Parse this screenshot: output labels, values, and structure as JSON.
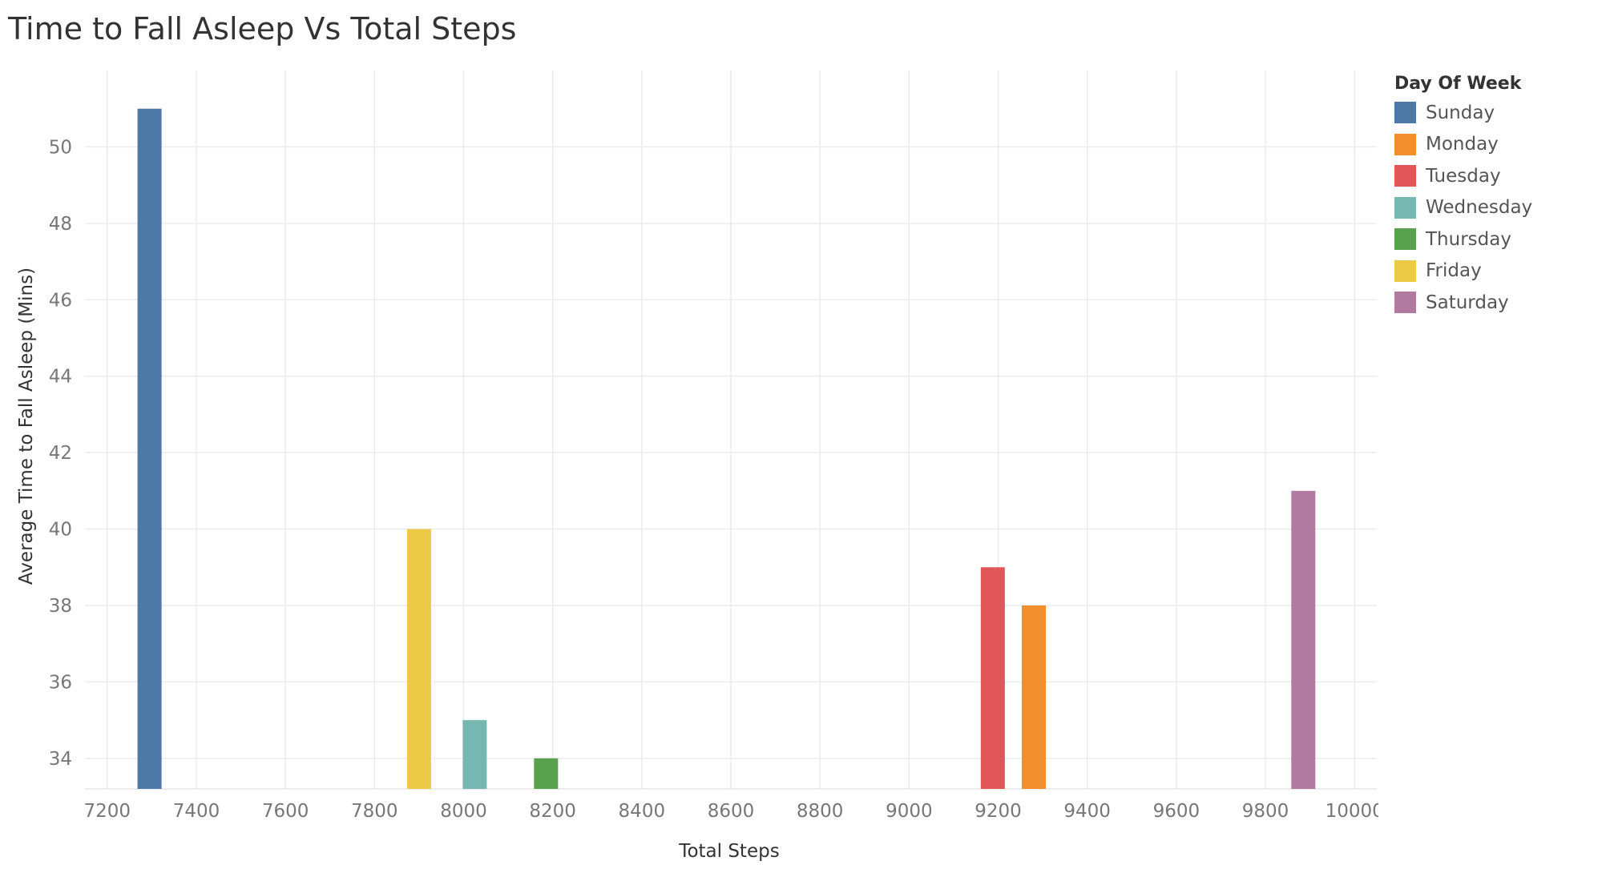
{
  "chart_data": {
    "type": "bar",
    "title": "Time to Fall Asleep Vs Total Steps",
    "xlabel": "Total Steps",
    "ylabel": "Average Time to Fall Asleep (Mins)",
    "xlim": [
      7150,
      10050
    ],
    "ylim": [
      33.2,
      52.0
    ],
    "xticks": [
      7200,
      7400,
      7600,
      7800,
      8000,
      8200,
      8400,
      8600,
      8800,
      9000,
      9200,
      9400,
      9600,
      9800,
      10000
    ],
    "yticks": [
      34,
      36,
      38,
      40,
      42,
      44,
      46,
      48,
      50
    ],
    "grid": true,
    "legend_title": "Day Of Week",
    "legend_position": "top-right",
    "series": [
      {
        "name": "Sunday",
        "x": 7295,
        "value": 51,
        "color": "#4e79a7"
      },
      {
        "name": "Monday",
        "x": 9280,
        "value": 38,
        "color": "#f28e2b"
      },
      {
        "name": "Tuesday",
        "x": 9188,
        "value": 39,
        "color": "#e15759"
      },
      {
        "name": "Wednesday",
        "x": 8025,
        "value": 35,
        "color": "#76b7b2"
      },
      {
        "name": "Thursday",
        "x": 8185,
        "value": 34,
        "color": "#59a14f"
      },
      {
        "name": "Friday",
        "x": 7900,
        "value": 40,
        "color": "#edc948"
      },
      {
        "name": "Saturday",
        "x": 9885,
        "value": 41,
        "color": "#b07aa1"
      }
    ]
  }
}
